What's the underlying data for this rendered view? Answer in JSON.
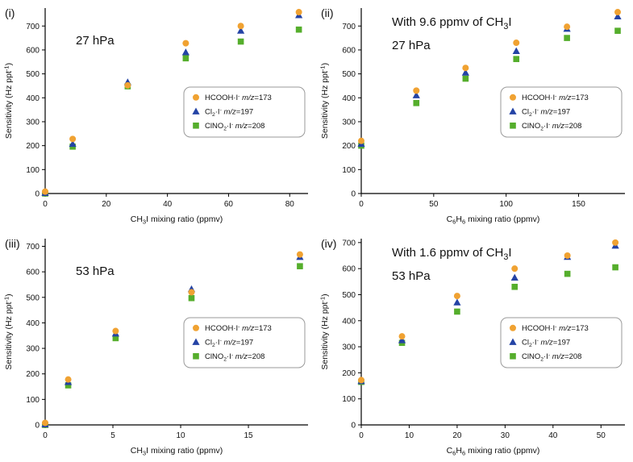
{
  "figure": {
    "background": "#ffffff",
    "text_color": "#111111"
  },
  "palette": {
    "orange": "#F0A232",
    "blue": "#2443A5",
    "green": "#55AE2C",
    "axis": "#000000",
    "legend_border": "#9a9a9a"
  },
  "chart_data": [
    {
      "id": "i",
      "type": "scatter",
      "panel_label": "(i)",
      "annotations_text": [
        "27 hPa"
      ],
      "annotations": [
        [
          {
            "t": "27 hPa"
          }
        ]
      ],
      "xlabel_text": "CH3I mixing ratio (ppmv)",
      "xlabel": [
        {
          "t": "CH"
        },
        {
          "t": "3",
          "s": "sub"
        },
        {
          "t": "I mixing ratio (ppmv)"
        }
      ],
      "ylabel_text": "Sensitivity (Hz ppt-1)",
      "ylabel": [
        {
          "t": "Sensitivity (Hz ppt"
        },
        {
          "t": "-1",
          "s": "sup"
        },
        {
          "t": ")"
        }
      ],
      "xlim": [
        0,
        86
      ],
      "xticks": [
        0,
        20,
        40,
        60,
        80
      ],
      "ylim": [
        0,
        775
      ],
      "yticks": [
        0,
        100,
        200,
        300,
        400,
        500,
        600,
        700
      ],
      "x": [
        0,
        9,
        27,
        46,
        64,
        83
      ],
      "series": [
        {
          "name": "HCOOH·I- m/z=173",
          "marker": "circle",
          "color": "#F0A232",
          "label": [
            {
              "t": "HCOOH·I"
            },
            {
              "t": "-",
              "s": "sup"
            },
            {
              "t": " "
            },
            {
              "t": "m/z",
              "s": "i"
            },
            {
              "t": "=173"
            }
          ],
          "values": [
            8,
            228,
            452,
            628,
            700,
            758
          ]
        },
        {
          "name": "Cl2·I- m/z=197",
          "marker": "triangle",
          "color": "#2443A5",
          "label": [
            {
              "t": "Cl"
            },
            {
              "t": "2",
              "s": "sub"
            },
            {
              "t": "·I"
            },
            {
              "t": "-",
              "s": "sup"
            },
            {
              "t": " "
            },
            {
              "t": "m/z",
              "s": "i"
            },
            {
              "t": "=197"
            }
          ],
          "values": [
            2,
            207,
            465,
            590,
            680,
            745
          ]
        },
        {
          "name": "ClNO2·I- m/z=208",
          "marker": "square",
          "color": "#55AE2C",
          "label": [
            {
              "t": "ClNO"
            },
            {
              "t": "2",
              "s": "sub"
            },
            {
              "t": "·I"
            },
            {
              "t": "-",
              "s": "sup"
            },
            {
              "t": " "
            },
            {
              "t": "m/z",
              "s": "i"
            },
            {
              "t": "=208"
            }
          ],
          "values": [
            0,
            196,
            448,
            565,
            635,
            685
          ]
        }
      ]
    },
    {
      "id": "ii",
      "type": "scatter",
      "panel_label": "(ii)",
      "annotations_text": [
        "With 9.6 ppmv of CH3I",
        "27 hPa"
      ],
      "annotations": [
        [
          {
            "t": "With 9.6 ppmv of CH"
          },
          {
            "t": "3",
            "s": "sub"
          },
          {
            "t": "I"
          }
        ],
        [
          {
            "t": "27 hPa"
          }
        ]
      ],
      "xlabel_text": "C6H6 mixing ratio (ppmv)",
      "xlabel": [
        {
          "t": "C"
        },
        {
          "t": "6",
          "s": "sub"
        },
        {
          "t": "H"
        },
        {
          "t": "6",
          "s": "sub"
        },
        {
          "t": " mixing ratio (ppmv)"
        }
      ],
      "ylabel_text": "Sensitivity (Hz ppt-1)",
      "ylabel": [
        {
          "t": "Sensitivity (Hz ppt"
        },
        {
          "t": "-1",
          "s": "sup"
        },
        {
          "t": ")"
        }
      ],
      "xlim": [
        0,
        182
      ],
      "xticks": [
        0,
        50,
        100,
        150
      ],
      "ylim": [
        0,
        775
      ],
      "yticks": [
        0,
        100,
        200,
        300,
        400,
        500,
        600,
        700
      ],
      "x": [
        0,
        38,
        72,
        107,
        142,
        177
      ],
      "series": [
        {
          "name": "HCOOH·I- m/z=173",
          "marker": "circle",
          "color": "#F0A232",
          "label": [
            {
              "t": "HCOOH·I"
            },
            {
              "t": "-",
              "s": "sup"
            },
            {
              "t": " "
            },
            {
              "t": "m/z",
              "s": "i"
            },
            {
              "t": "=173"
            }
          ],
          "values": [
            220,
            430,
            525,
            630,
            697,
            758
          ]
        },
        {
          "name": "Cl2·I- m/z=197",
          "marker": "triangle",
          "color": "#2443A5",
          "label": [
            {
              "t": "Cl"
            },
            {
              "t": "2",
              "s": "sub"
            },
            {
              "t": "·I"
            },
            {
              "t": "-",
              "s": "sup"
            },
            {
              "t": " "
            },
            {
              "t": "m/z",
              "s": "i"
            },
            {
              "t": "=197"
            }
          ],
          "values": [
            207,
            410,
            505,
            595,
            688,
            740
          ]
        },
        {
          "name": "ClNO2·I- m/z=208",
          "marker": "square",
          "color": "#55AE2C",
          "label": [
            {
              "t": "ClNO"
            },
            {
              "t": "2",
              "s": "sub"
            },
            {
              "t": "·I"
            },
            {
              "t": "-",
              "s": "sup"
            },
            {
              "t": " "
            },
            {
              "t": "m/z",
              "s": "i"
            },
            {
              "t": "=208"
            }
          ],
          "values": [
            200,
            378,
            480,
            562,
            650,
            680
          ]
        }
      ]
    },
    {
      "id": "iii",
      "type": "scatter",
      "panel_label": "(iii)",
      "annotations_text": [
        "53 hPa"
      ],
      "annotations": [
        [
          {
            "t": "53 hPa"
          }
        ]
      ],
      "xlabel_text": "CH3I mixing ratio (ppmv)",
      "xlabel": [
        {
          "t": "CH"
        },
        {
          "t": "3",
          "s": "sub"
        },
        {
          "t": "I mixing ratio (ppmv)"
        }
      ],
      "ylabel_text": "Sensitivity (Hz ppt-1)",
      "ylabel": [
        {
          "t": "Sensitivity (Hz ppt"
        },
        {
          "t": "-1",
          "s": "sup"
        },
        {
          "t": ")"
        }
      ],
      "xlim": [
        0,
        19.4
      ],
      "xticks": [
        0,
        5,
        10,
        15
      ],
      "ylim": [
        0,
        730
      ],
      "yticks": [
        0,
        100,
        200,
        300,
        400,
        500,
        600,
        700
      ],
      "x": [
        0,
        1.7,
        5.2,
        10.8,
        18.8
      ],
      "series": [
        {
          "name": "HCOOH·I- m/z=173",
          "marker": "circle",
          "color": "#F0A232",
          "label": [
            {
              "t": "HCOOH·I"
            },
            {
              "t": "-",
              "s": "sup"
            },
            {
              "t": " "
            },
            {
              "t": "m/z",
              "s": "i"
            },
            {
              "t": "=173"
            }
          ],
          "values": [
            8,
            178,
            368,
            520,
            668
          ]
        },
        {
          "name": "Cl2·I- m/z=197",
          "marker": "triangle",
          "color": "#2443A5",
          "label": [
            {
              "t": "Cl"
            },
            {
              "t": "2",
              "s": "sub"
            },
            {
              "t": "·I"
            },
            {
              "t": "-",
              "s": "sup"
            },
            {
              "t": " "
            },
            {
              "t": "m/z",
              "s": "i"
            },
            {
              "t": "=197"
            }
          ],
          "values": [
            2,
            168,
            358,
            532,
            658
          ]
        },
        {
          "name": "ClNO2·I- m/z=208",
          "marker": "square",
          "color": "#55AE2C",
          "label": [
            {
              "t": "ClNO"
            },
            {
              "t": "2",
              "s": "sub"
            },
            {
              "t": "·I"
            },
            {
              "t": "-",
              "s": "sup"
            },
            {
              "t": " "
            },
            {
              "t": "m/z",
              "s": "i"
            },
            {
              "t": "=208"
            }
          ],
          "values": [
            0,
            155,
            340,
            497,
            622
          ]
        }
      ]
    },
    {
      "id": "iv",
      "type": "scatter",
      "panel_label": "(iv)",
      "annotations_text": [
        "With 1.6 ppmv of CH3I",
        "53 hPa"
      ],
      "annotations": [
        [
          {
            "t": "With 1.6 ppmv of CH"
          },
          {
            "t": "3",
            "s": "sub"
          },
          {
            "t": "I"
          }
        ],
        [
          {
            "t": "53 hPa"
          }
        ]
      ],
      "xlabel_text": "C6H6 mixing ratio (ppmv)",
      "xlabel": [
        {
          "t": "C"
        },
        {
          "t": "6",
          "s": "sub"
        },
        {
          "t": "H"
        },
        {
          "t": "6",
          "s": "sub"
        },
        {
          "t": " mixing ratio (ppmv)"
        }
      ],
      "ylabel_text": "Sensitivity (Hz ppt-1)",
      "ylabel": [
        {
          "t": "Sensitivity (Hz ppt"
        },
        {
          "t": "-1",
          "s": "sup"
        },
        {
          "t": ")"
        }
      ],
      "xlim": [
        0,
        55
      ],
      "xticks": [
        0,
        10,
        20,
        30,
        40,
        50
      ],
      "ylim": [
        0,
        715
      ],
      "yticks": [
        0,
        100,
        200,
        300,
        400,
        500,
        600,
        700
      ],
      "x": [
        0,
        8.5,
        20,
        32,
        43,
        53
      ],
      "series": [
        {
          "name": "HCOOH·I- m/z=173",
          "marker": "circle",
          "color": "#F0A232",
          "label": [
            {
              "t": "HCOOH·I"
            },
            {
              "t": "-",
              "s": "sup"
            },
            {
              "t": " "
            },
            {
              "t": "m/z",
              "s": "i"
            },
            {
              "t": "=173"
            }
          ],
          "values": [
            172,
            340,
            495,
            600,
            650,
            700
          ]
        },
        {
          "name": "Cl2·I- m/z=197",
          "marker": "triangle",
          "color": "#2443A5",
          "label": [
            {
              "t": "Cl"
            },
            {
              "t": "2",
              "s": "sub"
            },
            {
              "t": "·I"
            },
            {
              "t": "-",
              "s": "sup"
            },
            {
              "t": " "
            },
            {
              "t": "m/z",
              "s": "i"
            },
            {
              "t": "=197"
            }
          ],
          "values": [
            168,
            325,
            470,
            565,
            645,
            688
          ]
        },
        {
          "name": "ClNO2·I- m/z=208",
          "marker": "square",
          "color": "#55AE2C",
          "label": [
            {
              "t": "ClNO"
            },
            {
              "t": "2",
              "s": "sub"
            },
            {
              "t": "·I"
            },
            {
              "t": "-",
              "s": "sup"
            },
            {
              "t": " "
            },
            {
              "t": "m/z",
              "s": "i"
            },
            {
              "t": "=208"
            }
          ],
          "values": [
            165,
            315,
            435,
            530,
            580,
            605
          ]
        }
      ]
    }
  ]
}
